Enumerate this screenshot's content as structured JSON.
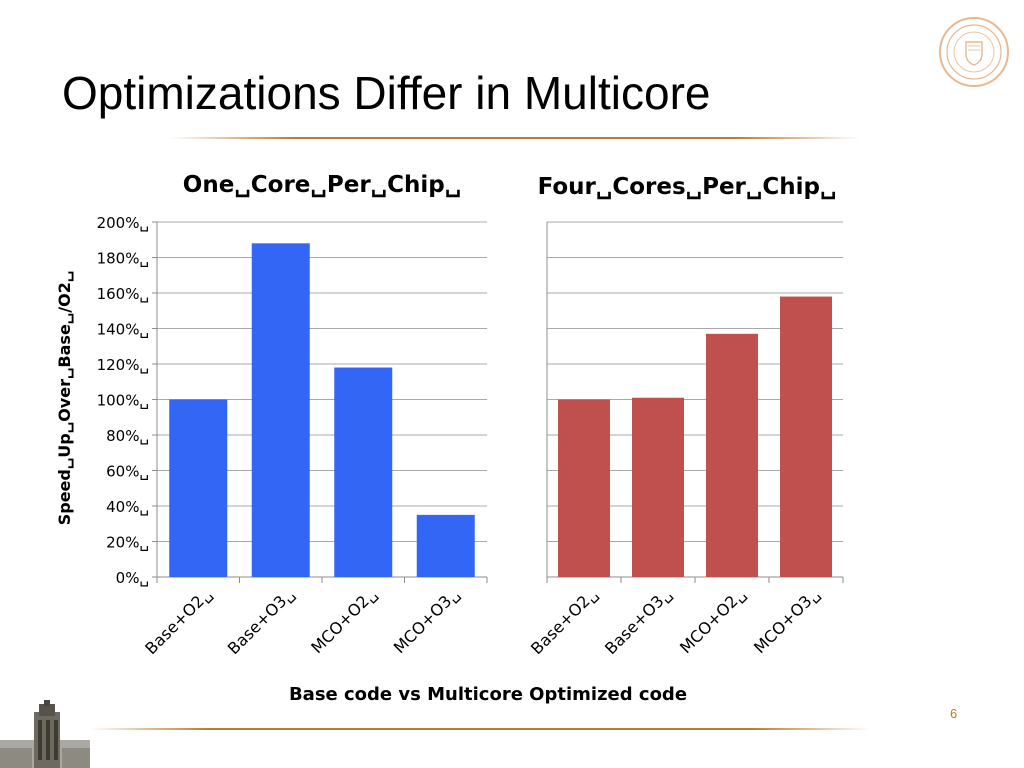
{
  "slide": {
    "title": "Optimizations Differ in Multicore",
    "page_number": "6"
  },
  "colors": {
    "one_core_bars": "#3366f5",
    "four_core_bars": "#c0504d",
    "accent_rule": "#c07a30"
  },
  "icons": {
    "seal": "university-seal-icon",
    "tower": "tower-logo-icon"
  },
  "chart_data": [
    {
      "type": "bar",
      "title": "One␣Core␣Per␣Chip␣",
      "ylabel": "Speed␣Up␣Over␣Base␣/O2␣",
      "xlabel": "Base code vs Multicore Optimized code",
      "categories": [
        "Base+O2␣",
        "Base+O3␣",
        "MCO+O2␣",
        "MCO+O3␣"
      ],
      "values": [
        100,
        188,
        118,
        35
      ],
      "ylim": [
        0,
        200
      ],
      "yticks": [
        {
          "value": 0,
          "label": "0%␣"
        },
        {
          "value": 20,
          "label": "20%␣"
        },
        {
          "value": 40,
          "label": "40%␣"
        },
        {
          "value": 60,
          "label": "60%␣"
        },
        {
          "value": 80,
          "label": "80%␣"
        },
        {
          "value": 100,
          "label": "100%␣"
        },
        {
          "value": 120,
          "label": "120%␣"
        },
        {
          "value": 140,
          "label": "140%␣"
        },
        {
          "value": 160,
          "label": "160%␣"
        },
        {
          "value": 180,
          "label": "180%␣"
        },
        {
          "value": 200,
          "label": "200%␣"
        }
      ],
      "grid": true,
      "legend": "none"
    },
    {
      "type": "bar",
      "title": "Four␣Cores␣Per␣Chip␣",
      "categories": [
        "Base+O2␣",
        "Base+O3␣",
        "MCO+O2␣",
        "MCO+O3␣"
      ],
      "values": [
        100,
        101,
        137,
        158
      ],
      "ylim": [
        0,
        200
      ],
      "grid": true,
      "legend": "none"
    }
  ]
}
